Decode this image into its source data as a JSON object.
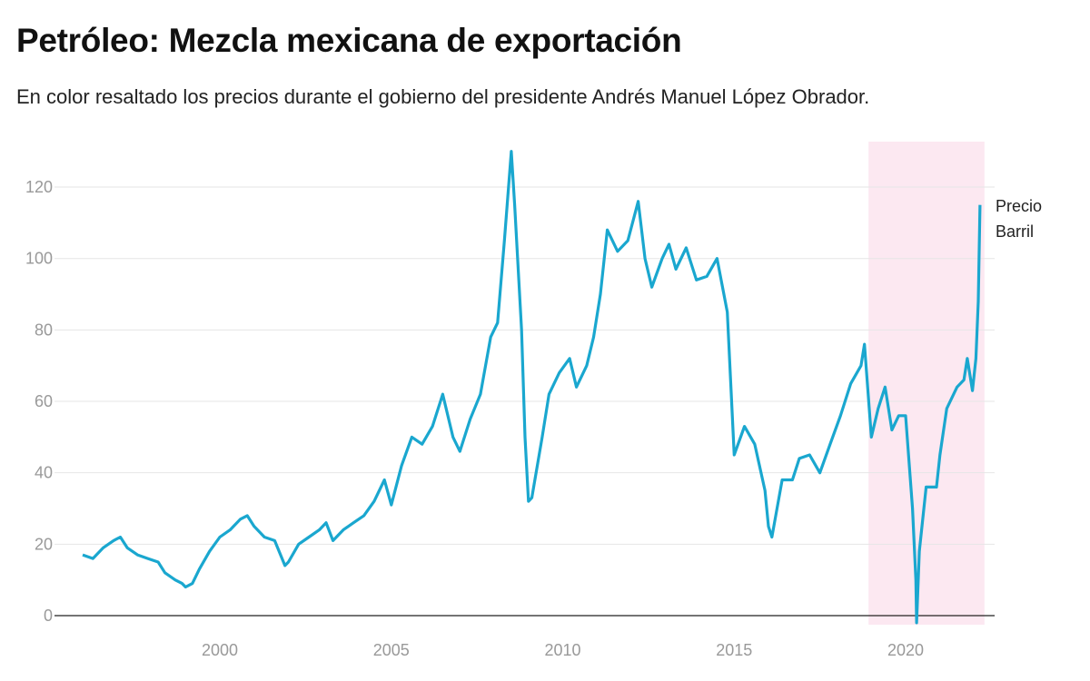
{
  "title": "Petróleo: Mezcla mexicana de exportación",
  "subtitle": "En color resaltado los precios durante el gobierno del presidente Andrés Manuel López Obrador.",
  "chart_data": {
    "type": "line",
    "title": "Petróleo: Mezcla mexicana de exportación",
    "xlabel": "",
    "ylabel": "",
    "xlim": [
      1995.6,
      2023.0
    ],
    "ylim": [
      0,
      130
    ],
    "x_ticks": [
      "2000",
      "2005",
      "2010",
      "2015",
      "2020"
    ],
    "y_ticks": [
      "0",
      "20",
      "40",
      "60",
      "80",
      "100",
      "120"
    ],
    "grid": true,
    "line_color": "#1aa7cf",
    "highlight": {
      "from": 2018.92,
      "to": 2022.3,
      "color": "#fce8f1"
    },
    "series": [
      {
        "name": "Precio Barril",
        "label_lines": [
          "Precio",
          "Barril"
        ],
        "points": [
          [
            1996.0,
            17
          ],
          [
            1996.3,
            16
          ],
          [
            1996.6,
            19
          ],
          [
            1996.9,
            21
          ],
          [
            1997.1,
            22
          ],
          [
            1997.3,
            19
          ],
          [
            1997.6,
            17
          ],
          [
            1997.9,
            16
          ],
          [
            1998.2,
            15
          ],
          [
            1998.4,
            12
          ],
          [
            1998.7,
            10
          ],
          [
            1998.9,
            9
          ],
          [
            1999.0,
            8
          ],
          [
            1999.2,
            9
          ],
          [
            1999.4,
            13
          ],
          [
            1999.7,
            18
          ],
          [
            2000.0,
            22
          ],
          [
            2000.3,
            24
          ],
          [
            2000.6,
            27
          ],
          [
            2000.8,
            28
          ],
          [
            2001.0,
            25
          ],
          [
            2001.3,
            22
          ],
          [
            2001.6,
            21
          ],
          [
            2001.9,
            14
          ],
          [
            2002.0,
            15
          ],
          [
            2002.3,
            20
          ],
          [
            2002.6,
            22
          ],
          [
            2002.9,
            24
          ],
          [
            2003.1,
            26
          ],
          [
            2003.3,
            21
          ],
          [
            2003.6,
            24
          ],
          [
            2003.9,
            26
          ],
          [
            2004.2,
            28
          ],
          [
            2004.5,
            32
          ],
          [
            2004.8,
            38
          ],
          [
            2005.0,
            31
          ],
          [
            2005.3,
            42
          ],
          [
            2005.6,
            50
          ],
          [
            2005.9,
            48
          ],
          [
            2006.2,
            53
          ],
          [
            2006.5,
            62
          ],
          [
            2006.8,
            50
          ],
          [
            2007.0,
            46
          ],
          [
            2007.3,
            55
          ],
          [
            2007.6,
            62
          ],
          [
            2007.9,
            78
          ],
          [
            2008.1,
            82
          ],
          [
            2008.3,
            105
          ],
          [
            2008.5,
            130
          ],
          [
            2008.6,
            115
          ],
          [
            2008.8,
            80
          ],
          [
            2008.9,
            50
          ],
          [
            2009.0,
            32
          ],
          [
            2009.1,
            33
          ],
          [
            2009.4,
            50
          ],
          [
            2009.6,
            62
          ],
          [
            2009.9,
            68
          ],
          [
            2010.2,
            72
          ],
          [
            2010.4,
            64
          ],
          [
            2010.7,
            70
          ],
          [
            2010.9,
            78
          ],
          [
            2011.1,
            90
          ],
          [
            2011.3,
            108
          ],
          [
            2011.6,
            102
          ],
          [
            2011.9,
            105
          ],
          [
            2012.2,
            116
          ],
          [
            2012.4,
            100
          ],
          [
            2012.6,
            92
          ],
          [
            2012.9,
            100
          ],
          [
            2013.1,
            104
          ],
          [
            2013.3,
            97
          ],
          [
            2013.6,
            103
          ],
          [
            2013.9,
            94
          ],
          [
            2014.2,
            95
          ],
          [
            2014.5,
            100
          ],
          [
            2014.8,
            85
          ],
          [
            2015.0,
            45
          ],
          [
            2015.3,
            53
          ],
          [
            2015.6,
            48
          ],
          [
            2015.9,
            35
          ],
          [
            2016.0,
            25
          ],
          [
            2016.1,
            22
          ],
          [
            2016.4,
            38
          ],
          [
            2016.7,
            38
          ],
          [
            2016.9,
            44
          ],
          [
            2017.2,
            45
          ],
          [
            2017.5,
            40
          ],
          [
            2017.8,
            48
          ],
          [
            2018.1,
            56
          ],
          [
            2018.4,
            65
          ],
          [
            2018.7,
            70
          ],
          [
            2018.8,
            76
          ],
          [
            2018.9,
            63
          ],
          [
            2019.0,
            50
          ],
          [
            2019.2,
            58
          ],
          [
            2019.4,
            64
          ],
          [
            2019.6,
            52
          ],
          [
            2019.8,
            56
          ],
          [
            2020.0,
            56
          ],
          [
            2020.2,
            30
          ],
          [
            2020.3,
            10
          ],
          [
            2020.32,
            -2
          ],
          [
            2020.4,
            18
          ],
          [
            2020.6,
            36
          ],
          [
            2020.9,
            36
          ],
          [
            2021.0,
            45
          ],
          [
            2021.2,
            58
          ],
          [
            2021.5,
            64
          ],
          [
            2021.7,
            66
          ],
          [
            2021.8,
            72
          ],
          [
            2021.95,
            63
          ],
          [
            2022.05,
            72
          ],
          [
            2022.12,
            88
          ],
          [
            2022.17,
            115
          ]
        ]
      }
    ]
  }
}
